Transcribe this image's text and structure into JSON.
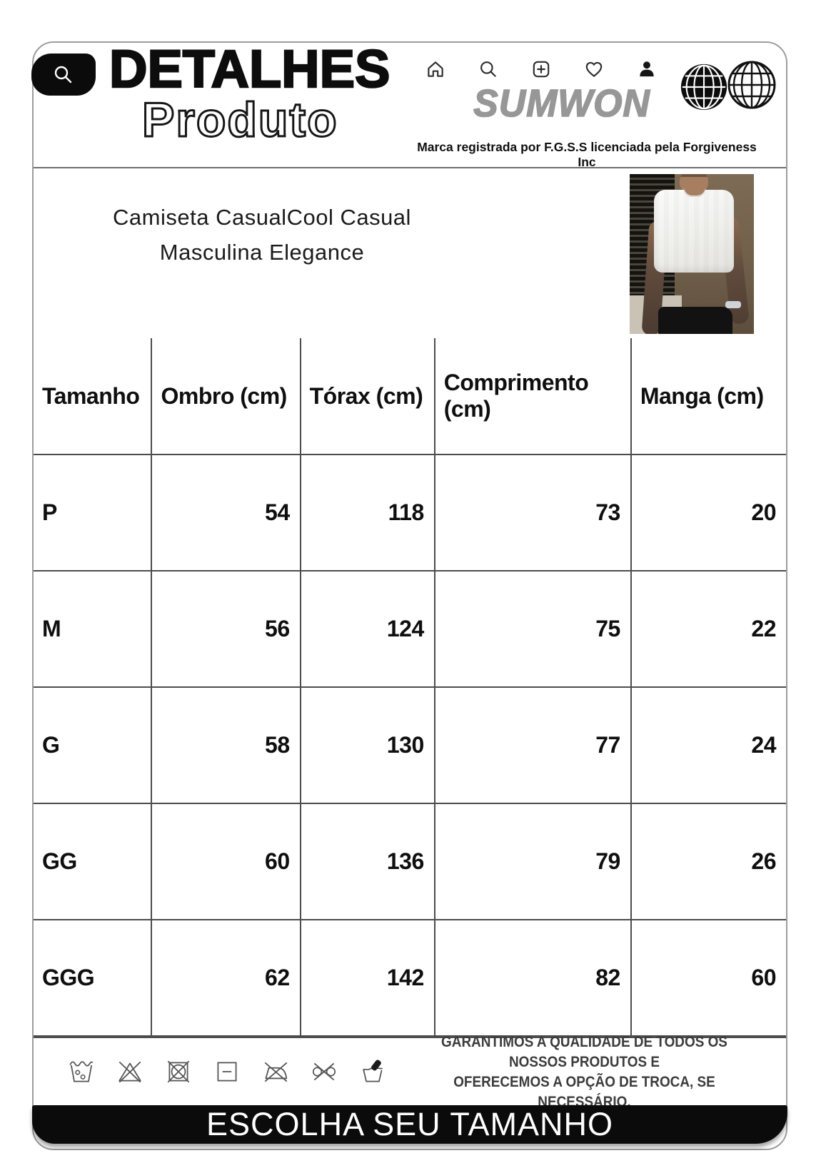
{
  "header": {
    "title_line1": "DETALHES",
    "title_line2": "Produto",
    "brand": "SUMWON",
    "trademark": "Marca registrada por F.G.S.S licenciada pela Forgiveness Inc",
    "nav_icons": [
      "home-icon",
      "search-icon",
      "add-post-icon",
      "heart-icon",
      "profile-icon"
    ],
    "logo_icons": [
      "globe-filled-icon",
      "globe-outline-icon"
    ],
    "badge_icon": "search-icon"
  },
  "product": {
    "title_line1": "Camiseta CasualCool Casual",
    "title_line2": "Masculina Elegance",
    "photo_description": "man-in-white-tshirt-photo"
  },
  "table": {
    "headers": [
      "Tamanho",
      "Ombro (cm)",
      "Tórax (cm)",
      "Comprimento (cm)",
      "Manga (cm)"
    ],
    "rows": [
      {
        "size": "P",
        "values": [
          "54",
          "118",
          "73",
          "20"
        ]
      },
      {
        "size": "M",
        "values": [
          "56",
          "124",
          "75",
          "22"
        ]
      },
      {
        "size": "G",
        "values": [
          "58",
          "130",
          "77",
          "24"
        ]
      },
      {
        "size": "GG",
        "values": [
          "60",
          "136",
          "79",
          "26"
        ]
      },
      {
        "size": "GGG",
        "values": [
          "62",
          "142",
          "82",
          "60"
        ]
      }
    ]
  },
  "footer": {
    "care_icons": [
      "machine-wash-icon",
      "do-not-bleach-icon",
      "do-not-tumble-dry-icon",
      "dry-flat-icon",
      "do-not-iron-icon",
      "do-not-wring-icon",
      "hand-wash-icon"
    ],
    "guarantee_line1": "GARANTIMOS A QUALIDADE DE TODOS OS NOSSOS PRODUTOS E",
    "guarantee_line2": "OFERECEMOS A OPÇÃO DE TROCA, SE NECESSÁRIO.",
    "cta": "ESCOLHA SEU TAMANHO"
  },
  "colors": {
    "accent_black": "#0b0b0b",
    "brand_gray": "#979797",
    "border_gray": "#4c4c4c",
    "guarantee_gray": "#3c3c3c"
  }
}
